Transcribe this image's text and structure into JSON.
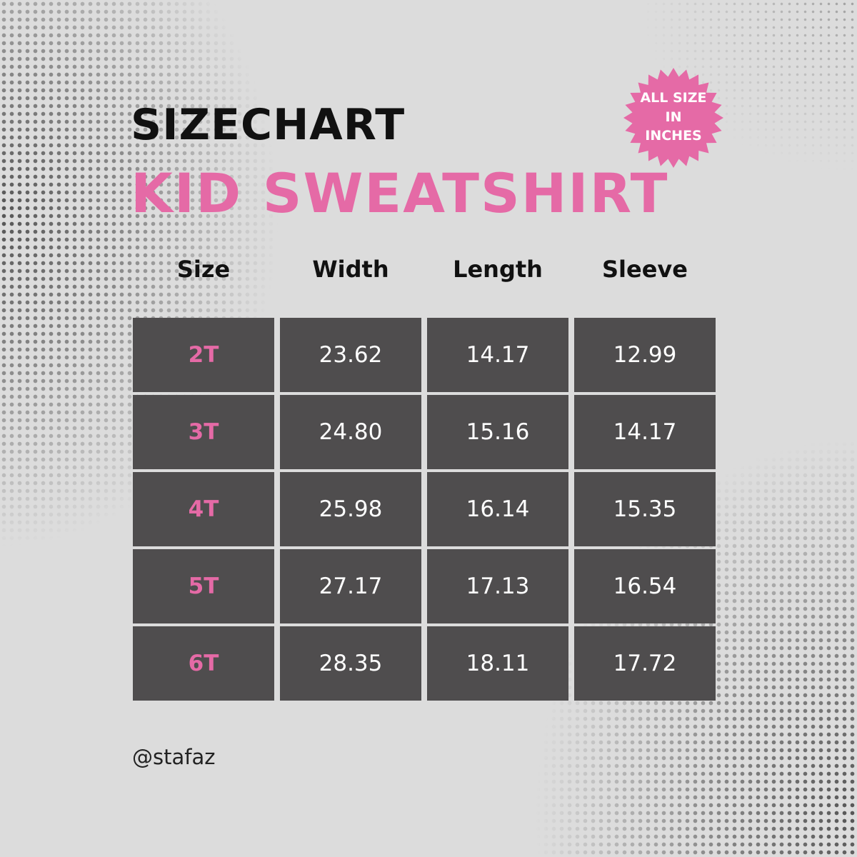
{
  "title": "SIZECHART",
  "subtitle": "KID SWEATSHIRT",
  "badge": {
    "lines": [
      "ALL SIZE",
      "IN",
      "INCHES"
    ],
    "color": "#e56aa6"
  },
  "colors": {
    "accent": "#e56aa6",
    "cell_bg": "#4f4d4e",
    "background": "#dcdcdc"
  },
  "table": {
    "headers": [
      "Size",
      "Width",
      "Length",
      "Sleeve"
    ],
    "rows": [
      [
        "2T",
        "23.62",
        "14.17",
        "12.99"
      ],
      [
        "3T",
        "24.80",
        "15.16",
        "14.17"
      ],
      [
        "4T",
        "25.98",
        "16.14",
        "15.35"
      ],
      [
        "5T",
        "27.17",
        "17.13",
        "16.54"
      ],
      [
        "6T",
        "28.35",
        "18.11",
        "17.72"
      ]
    ]
  },
  "handle": "@stafaz"
}
